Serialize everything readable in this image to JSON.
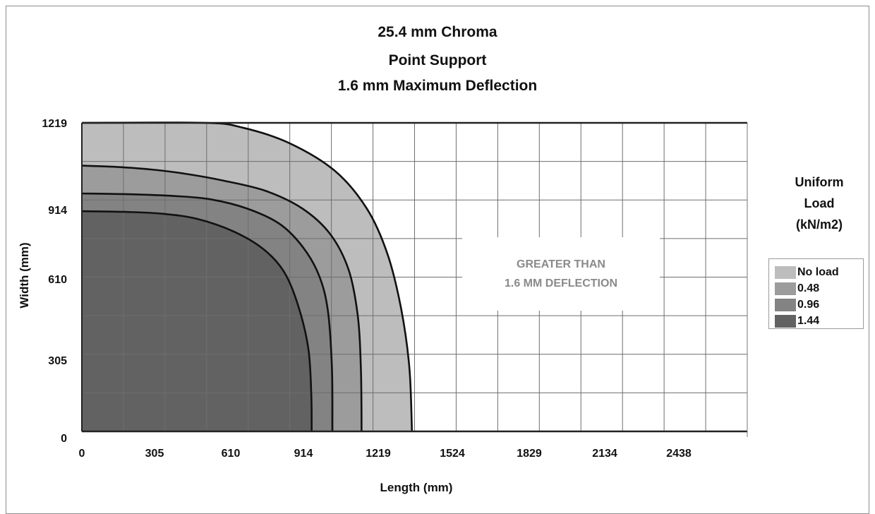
{
  "chart_data": {
    "type": "area",
    "title": [
      "25.4 mm Chroma",
      "Point Support",
      "1.6 mm Maximum Deflection"
    ],
    "xlabel": "Length (mm)",
    "ylabel": "Width (mm)",
    "xlim": [
      0,
      2895
    ],
    "ylim": [
      0,
      1219
    ],
    "x_ticks": [
      "0",
      "305",
      "610",
      "914",
      "1219",
      "1524",
      "1829",
      "2134",
      "2438"
    ],
    "y_ticks": [
      "0",
      "305",
      "610",
      "914",
      "1219"
    ],
    "grid": true,
    "legend_title": [
      "Uniform",
      "Load",
      "(kN/m2)"
    ],
    "legend_position": "right",
    "annotation": [
      "GREATER THAN",
      "1.6 MM DEFLECTION"
    ],
    "series": [
      {
        "name": "No load",
        "color": "#bdbdbd",
        "points": [
          [
            0,
            1219
          ],
          [
            533,
            1219
          ],
          [
            700,
            1200
          ],
          [
            900,
            1140
          ],
          [
            1100,
            1030
          ],
          [
            1240,
            880
          ],
          [
            1330,
            700
          ],
          [
            1390,
            480
          ],
          [
            1425,
            250
          ],
          [
            1436,
            0
          ]
        ]
      },
      {
        "name": "0.48",
        "color": "#9c9c9c",
        "points": [
          [
            0,
            1050
          ],
          [
            150,
            1045
          ],
          [
            300,
            1035
          ],
          [
            450,
            1018
          ],
          [
            620,
            990
          ],
          [
            800,
            950
          ],
          [
            960,
            880
          ],
          [
            1080,
            780
          ],
          [
            1160,
            640
          ],
          [
            1200,
            460
          ],
          [
            1214,
            250
          ],
          [
            1217,
            0
          ]
        ]
      },
      {
        "name": "0.96",
        "color": "#838383",
        "points": [
          [
            0,
            940
          ],
          [
            200,
            937
          ],
          [
            400,
            930
          ],
          [
            560,
            917
          ],
          [
            720,
            880
          ],
          [
            860,
            820
          ],
          [
            960,
            730
          ],
          [
            1030,
            620
          ],
          [
            1070,
            480
          ],
          [
            1088,
            250
          ],
          [
            1090,
            0
          ]
        ]
      },
      {
        "name": "1.44",
        "color": "#626262",
        "points": [
          [
            0,
            870
          ],
          [
            200,
            867
          ],
          [
            350,
            860
          ],
          [
            500,
            840
          ],
          [
            660,
            790
          ],
          [
            790,
            720
          ],
          [
            880,
            630
          ],
          [
            940,
            500
          ],
          [
            985,
            330
          ],
          [
            998,
            150
          ],
          [
            1000,
            0
          ]
        ]
      }
    ]
  }
}
